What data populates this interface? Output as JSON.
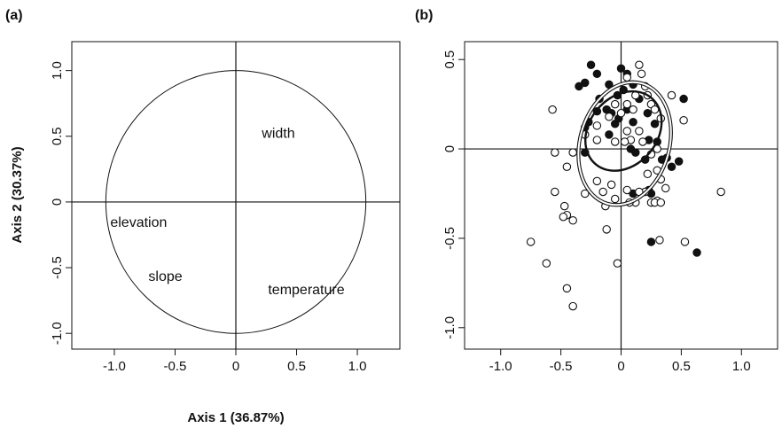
{
  "panel_a": {
    "label": "(a)",
    "xlabel": "Axis 1 (36.87%)",
    "ylabel": "Axis 2 (30.37%)"
  },
  "panel_b": {
    "label": "(b)"
  },
  "chart_data": [
    {
      "type": "scatter",
      "panel": "(a)",
      "title": "",
      "xlabel": "Axis 1 (36.87%)",
      "ylabel": "Axis 2 (30.37%)",
      "xlim": [
        -1.35,
        1.35
      ],
      "ylim": [
        -1.12,
        1.22
      ],
      "xticks": [
        -1.0,
        -0.5,
        0,
        0.5,
        1.0
      ],
      "xtick_labels": [
        "-1.0",
        "-0.5",
        "0",
        "0.5",
        "1.0"
      ],
      "yticks": [
        -1.0,
        -0.5,
        0,
        0.5,
        1.0
      ],
      "ytick_labels": [
        "-1.0",
        "-0.5",
        "0",
        "0.5",
        "1.0"
      ],
      "grid": false,
      "reference_lines": {
        "x": 0,
        "y": 0
      },
      "correlation_circle": {
        "center": [
          0,
          0
        ],
        "radius_x": 1.07,
        "radius_y": 1.0
      },
      "variables": [
        {
          "label": "width",
          "x": 0.35,
          "y": 0.53
        },
        {
          "label": "elevation",
          "x": -0.8,
          "y": -0.15
        },
        {
          "label": "slope",
          "x": -0.58,
          "y": -0.56
        },
        {
          "label": "temperature",
          "x": 0.58,
          "y": -0.66
        }
      ]
    },
    {
      "type": "scatter",
      "panel": "(b)",
      "title": "",
      "xlabel": "",
      "ylabel": "",
      "xlim": [
        -1.3,
        1.3
      ],
      "ylim": [
        -1.12,
        0.6
      ],
      "xticks": [
        -1.0,
        -0.5,
        0,
        0.5,
        1.0
      ],
      "xtick_labels": [
        "-1.0",
        "-0.5",
        "0",
        "0.5",
        "1.0"
      ],
      "yticks": [
        -1.0,
        -0.5,
        0,
        0.5
      ],
      "ytick_labels": [
        "-1.0",
        "-0.5",
        "0",
        "0.5"
      ],
      "grid": false,
      "reference_lines": {
        "x": 0,
        "y": 0
      },
      "series": [
        {
          "marker": "filled",
          "points": [
            [
              -0.25,
              0.47
            ],
            [
              -0.35,
              0.35
            ],
            [
              -0.3,
              0.37
            ],
            [
              -0.2,
              0.42
            ],
            [
              -0.1,
              0.36
            ],
            [
              0.05,
              0.42
            ],
            [
              0.0,
              0.45
            ],
            [
              0.1,
              0.36
            ],
            [
              0.02,
              0.33
            ],
            [
              -0.03,
              0.3
            ],
            [
              -0.18,
              0.28
            ],
            [
              -0.12,
              0.22
            ],
            [
              -0.2,
              0.21
            ],
            [
              -0.1,
              0.08
            ],
            [
              -0.27,
              0.15
            ],
            [
              -0.3,
              0.12
            ],
            [
              -0.08,
              0.2
            ],
            [
              0.15,
              0.28
            ],
            [
              0.22,
              0.2
            ],
            [
              0.28,
              0.14
            ],
            [
              0.05,
              0.22
            ],
            [
              -0.02,
              0.17
            ],
            [
              -0.05,
              0.14
            ],
            [
              0.1,
              0.15
            ],
            [
              0.23,
              0.05
            ],
            [
              0.3,
              0.04
            ],
            [
              0.08,
              0.0
            ],
            [
              0.2,
              -0.06
            ],
            [
              0.12,
              -0.02
            ],
            [
              0.34,
              -0.06
            ],
            [
              0.42,
              -0.1
            ],
            [
              0.48,
              -0.07
            ],
            [
              0.52,
              0.28
            ],
            [
              -0.3,
              -0.02
            ],
            [
              0.23,
              -0.23
            ],
            [
              0.25,
              -0.25
            ],
            [
              0.1,
              -0.25
            ],
            [
              0.25,
              -0.52
            ],
            [
              0.63,
              -0.58
            ],
            [
              0.38,
              -0.05
            ]
          ]
        },
        {
          "marker": "open",
          "points": [
            [
              0.15,
              0.47
            ],
            [
              0.05,
              0.4
            ],
            [
              0.17,
              0.42
            ],
            [
              0.2,
              0.35
            ],
            [
              0.22,
              0.3
            ],
            [
              0.12,
              0.3
            ],
            [
              0.42,
              0.3
            ],
            [
              0.25,
              0.25
            ],
            [
              0.05,
              0.25
            ],
            [
              0.1,
              0.22
            ],
            [
              -0.05,
              0.25
            ],
            [
              0.0,
              0.2
            ],
            [
              0.28,
              0.22
            ],
            [
              0.33,
              0.17
            ],
            [
              0.52,
              0.16
            ],
            [
              -0.1,
              0.18
            ],
            [
              -0.2,
              0.13
            ],
            [
              0.15,
              0.1
            ],
            [
              0.05,
              0.1
            ],
            [
              0.08,
              0.05
            ],
            [
              -0.2,
              0.05
            ],
            [
              -0.05,
              0.04
            ],
            [
              0.03,
              0.04
            ],
            [
              0.18,
              0.04
            ],
            [
              -0.3,
              0.08
            ],
            [
              0.25,
              -0.03
            ],
            [
              0.3,
              0.0
            ],
            [
              -0.4,
              -0.02
            ],
            [
              0.3,
              -0.12
            ],
            [
              0.22,
              -0.14
            ],
            [
              -0.2,
              -0.18
            ],
            [
              -0.08,
              -0.2
            ],
            [
              0.05,
              -0.23
            ],
            [
              0.2,
              -0.24
            ],
            [
              0.33,
              -0.17
            ],
            [
              0.37,
              -0.22
            ],
            [
              -0.3,
              -0.25
            ],
            [
              -0.15,
              -0.24
            ],
            [
              0.12,
              -0.3
            ],
            [
              0.25,
              -0.3
            ],
            [
              -0.05,
              -0.28
            ],
            [
              0.3,
              -0.29
            ],
            [
              0.28,
              -0.3
            ],
            [
              -0.13,
              -0.32
            ],
            [
              0.33,
              -0.3
            ],
            [
              -0.4,
              -0.4
            ],
            [
              -0.55,
              -0.24
            ],
            [
              -0.47,
              -0.32
            ],
            [
              -0.45,
              -0.37
            ],
            [
              -0.12,
              -0.45
            ],
            [
              0.07,
              -0.3
            ],
            [
              -0.48,
              -0.38
            ],
            [
              0.15,
              -0.24
            ],
            [
              -0.55,
              -0.02
            ],
            [
              -0.45,
              -0.1
            ],
            [
              0.83,
              -0.24
            ],
            [
              0.53,
              -0.52
            ],
            [
              0.32,
              -0.51
            ],
            [
              -0.75,
              -0.52
            ],
            [
              -0.62,
              -0.64
            ],
            [
              -0.03,
              -0.64
            ],
            [
              -0.45,
              -0.78
            ],
            [
              -0.4,
              -0.88
            ],
            [
              -0.57,
              0.22
            ]
          ]
        }
      ],
      "ellipses": [
        {
          "style": "bold",
          "cx": 0.02,
          "cy": 0.1,
          "rx": 0.36,
          "ry": 0.19,
          "angle_deg": -50
        },
        {
          "style": "double",
          "cx": 0.03,
          "cy": 0.03,
          "rx": 0.52,
          "ry": 0.25,
          "angle_deg": -74
        }
      ]
    }
  ]
}
